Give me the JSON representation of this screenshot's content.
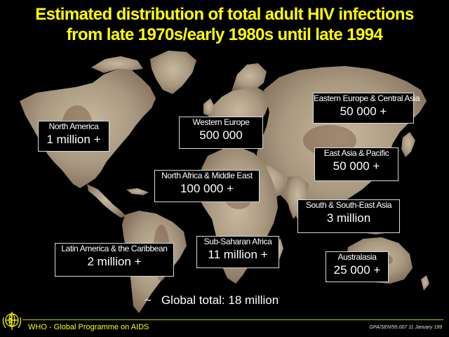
{
  "title": {
    "line1": "Estimated distribution of total adult HIV infections",
    "line2": "from late 1970s/early 1980s until late 1994"
  },
  "regions": [
    {
      "name": "North America",
      "value": "1 million  +"
    },
    {
      "name": "Western Europe",
      "value": "500 000"
    },
    {
      "name": "Eastern Europe & Central Asia",
      "value": "50 000 +"
    },
    {
      "name": "North Africa & Middle East",
      "value": "100 000 +"
    },
    {
      "name": "East Asia & Pacific",
      "value": "50 000 +"
    },
    {
      "name": "South & South-East Asia",
      "value": "3 million"
    },
    {
      "name": "Latin America & the Caribbean",
      "value": "2 million +"
    },
    {
      "name": "Sub-Saharan Africa",
      "value": "11 million +"
    },
    {
      "name": "Australasia",
      "value": "25 000 +"
    }
  ],
  "global": {
    "prefix": "~",
    "text": "Global total: 18 million"
  },
  "footer": {
    "org": "WHO - Global Programme on AIDS",
    "ref": "GPA/SEN/95.007  11 January 199"
  },
  "colors": {
    "title": "#ffff00",
    "land": "#a89880",
    "land_highlight": "#c8b8a0",
    "land_dark": "#70503c",
    "box_border": "#d8d8d8",
    "text": "#ffffff",
    "footer_org": "#ffff00"
  },
  "icons": {
    "logo": "who-emblem-icon"
  }
}
